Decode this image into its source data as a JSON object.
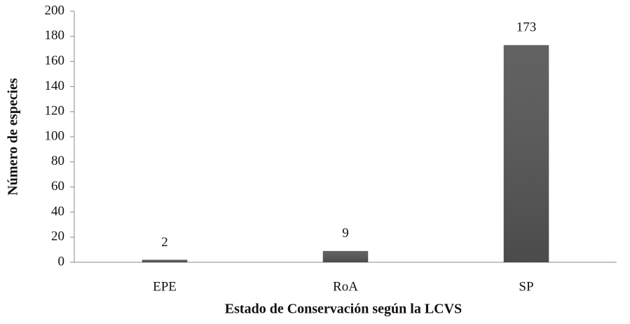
{
  "chart_data": {
    "type": "bar",
    "xlabel": "Estado de Conservación según la LCVS",
    "ylabel": "Número de especies",
    "categories": [
      "EPE",
      "RoA",
      "SP"
    ],
    "values": [
      2,
      9,
      173
    ],
    "color": "#555555",
    "ylim": [
      0,
      200
    ],
    "yticks": [
      0,
      20,
      40,
      60,
      80,
      100,
      120,
      140,
      160,
      180,
      200
    ],
    "grid": false
  }
}
